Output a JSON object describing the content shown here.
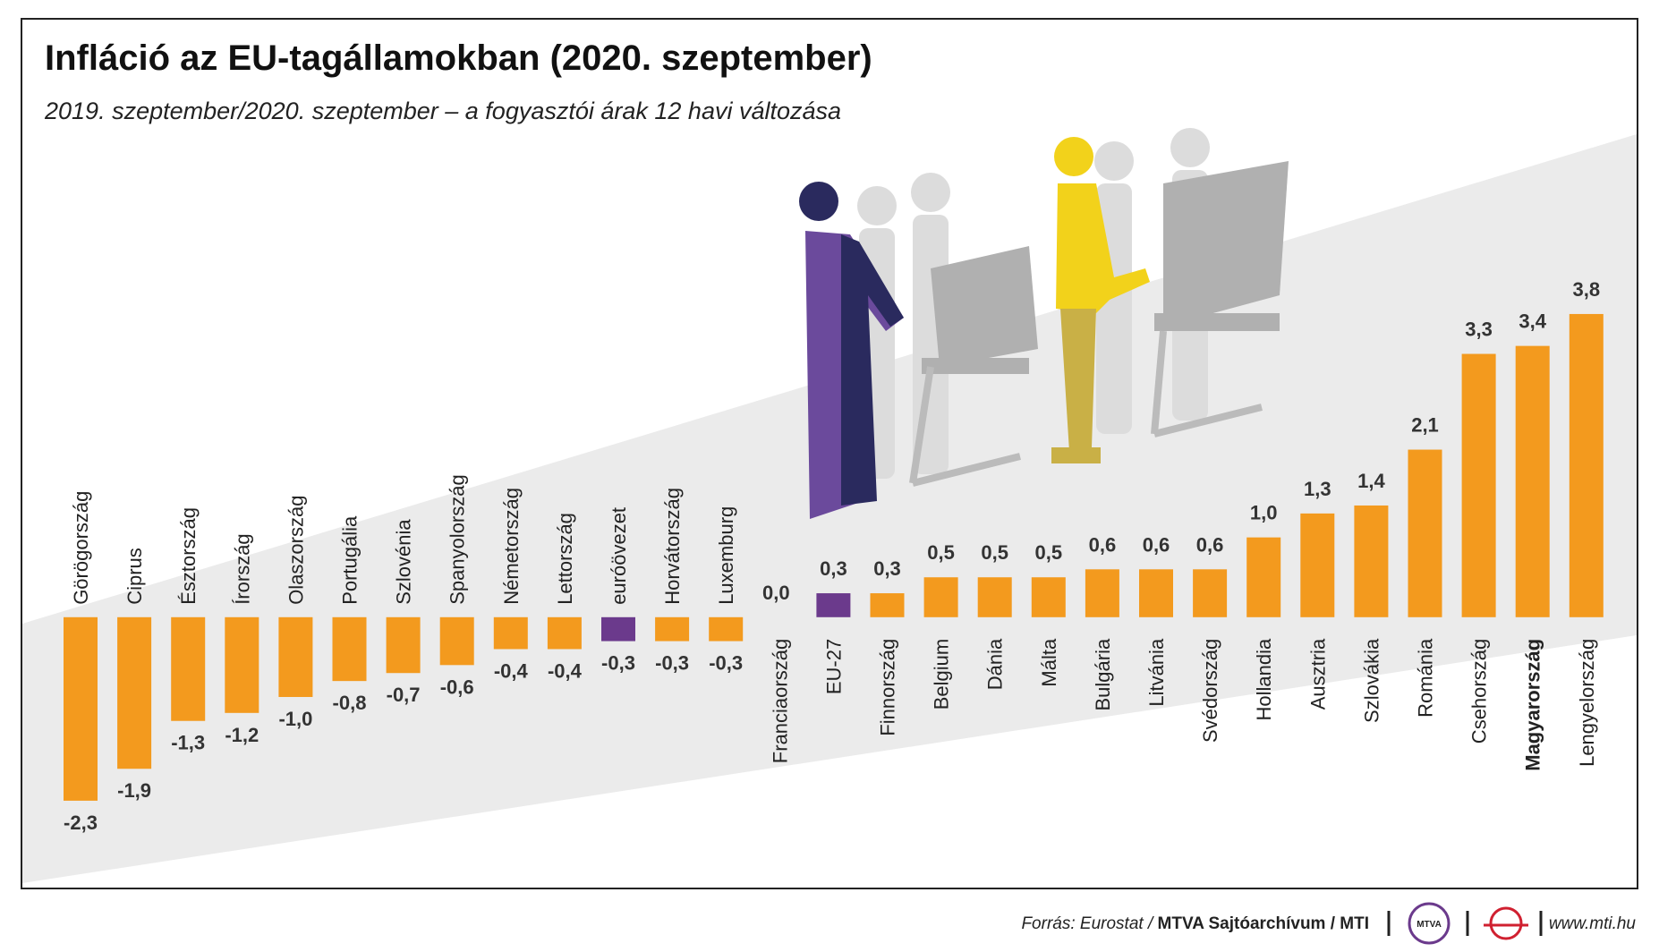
{
  "chart_data": {
    "type": "bar",
    "title": "Infláció az EU-tagállamokban (2020. szeptember)",
    "subtitle": "2019. szeptember/2020. szeptember – a fogyasztói árak 12 havi változása",
    "categories": [
      "Görögország",
      "Ciprus",
      "Észtország",
      "Írország",
      "Olaszország",
      "Portugália",
      "Szlovénia",
      "Spanyolország",
      "Németország",
      "Lettország",
      "euróövezet",
      "Horvátország",
      "Luxemburg",
      "Franciaország",
      "EU-27",
      "Finnország",
      "Belgium",
      "Dánia",
      "Málta",
      "Bulgária",
      "Litvánia",
      "Svédország",
      "Hollandia",
      "Ausztria",
      "Szlovákia",
      "Románia",
      "Csehország",
      "Magyarország",
      "Lengyelország"
    ],
    "values": [
      -2.3,
      -1.9,
      -1.3,
      -1.2,
      -1.0,
      -0.8,
      -0.7,
      -0.6,
      -0.4,
      -0.4,
      -0.3,
      -0.3,
      -0.3,
      0.0,
      0.3,
      0.3,
      0.5,
      0.5,
      0.5,
      0.6,
      0.6,
      0.6,
      1.0,
      1.3,
      1.4,
      2.1,
      3.3,
      3.4,
      3.8
    ],
    "value_labels": [
      "-2,3",
      "-1,9",
      "-1,3",
      "-1,2",
      "-1,0",
      "-0,8",
      "-0,7",
      "-0,6",
      "-0,4",
      "-0,4",
      "-0,3",
      "-0,3",
      "-0,3",
      "0,0",
      "0,3",
      "0,3",
      "0,5",
      "0,5",
      "0,5",
      "0,6",
      "0,6",
      "0,6",
      "1,0",
      "1,3",
      "1,4",
      "2,1",
      "3,3",
      "3,4",
      "3,8"
    ],
    "colors": [
      "#f39a1e",
      "#f39a1e",
      "#f39a1e",
      "#f39a1e",
      "#f39a1e",
      "#f39a1e",
      "#f39a1e",
      "#f39a1e",
      "#f39a1e",
      "#f39a1e",
      "#6b3a8c",
      "#f39a1e",
      "#f39a1e",
      "#f39a1e",
      "#6b3a8c",
      "#f39a1e",
      "#f39a1e",
      "#f39a1e",
      "#f39a1e",
      "#f39a1e",
      "#f39a1e",
      "#f39a1e",
      "#f39a1e",
      "#f39a1e",
      "#f39a1e",
      "#f39a1e",
      "#f39a1e",
      "#f39a1e",
      "#f39a1e"
    ],
    "bold_category": "Magyarország",
    "ylim": [
      -3.4,
      7.5
    ]
  },
  "footer": {
    "source": "Forrás: Eurostat /",
    "source_bold": "MTVA Sajtóarchívum / MTI",
    "logo": "MTVA",
    "url": "www.mti.hu"
  }
}
